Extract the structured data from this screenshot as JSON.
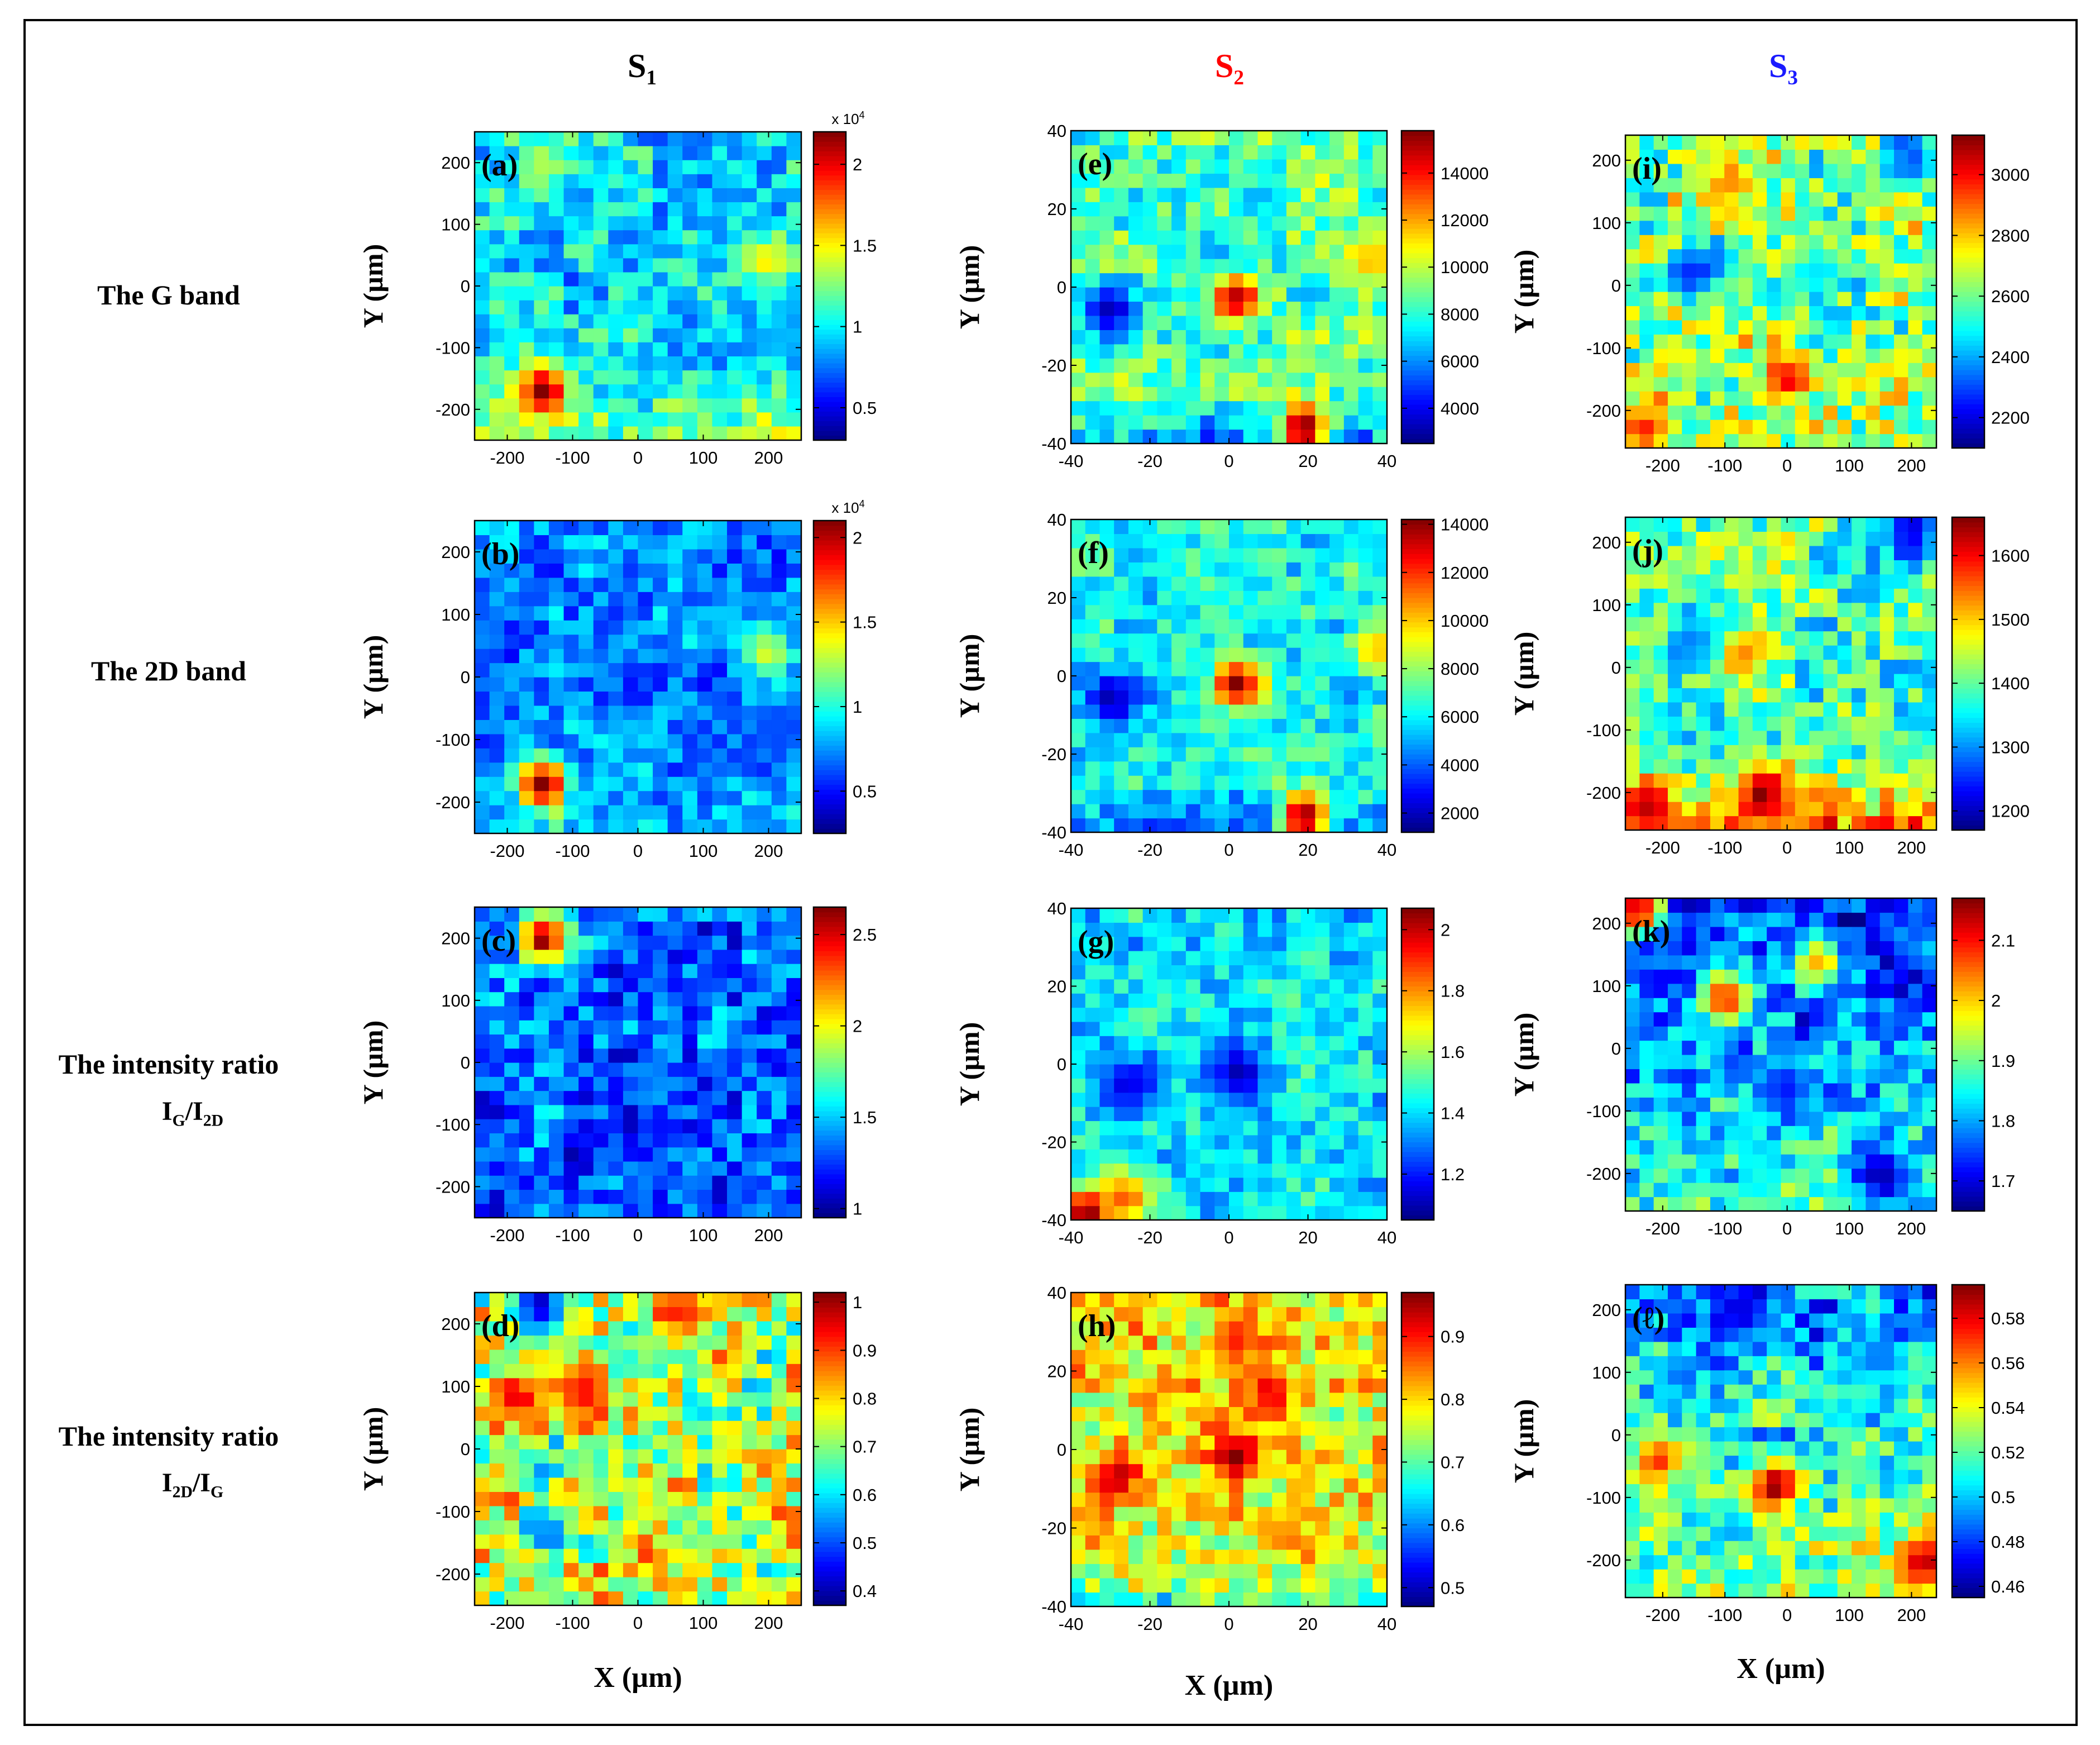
{
  "figure": {
    "columns": [
      {
        "name": "S",
        "sub": "1",
        "color": "#000000"
      },
      {
        "name": "S",
        "sub": "2",
        "color": "#ff0000"
      },
      {
        "name": "S",
        "sub": "3",
        "color": "#1a1aff"
      }
    ],
    "rows": [
      {
        "lines": [
          {
            "text": "The G band",
            "sub": ""
          }
        ]
      },
      {
        "lines": [
          {
            "text": "The 2D band",
            "sub": ""
          }
        ]
      },
      {
        "lines": [
          {
            "text": "The intensity ratio",
            "sub": ""
          },
          {
            "text": "I",
            "sub": "G",
            "text2": "/I",
            "sub2": "2D"
          }
        ]
      },
      {
        "lines": [
          {
            "text": "The intensity ratio",
            "sub": ""
          },
          {
            "text": "I",
            "sub": "2D",
            "text2": "/I",
            "sub2": "G"
          }
        ]
      }
    ],
    "xlabel": "X (µm)",
    "ylabel": "Y (µm)"
  },
  "chart_data": [
    {
      "type": "heatmap",
      "panel": "(a)",
      "sample": "S1",
      "quantity": "The G band",
      "xlabel": "X (µm)",
      "ylabel": "Y (µm)",
      "xlim": [
        -250,
        250
      ],
      "ylim": [
        -250,
        250
      ],
      "xticks": [
        -200,
        -100,
        0,
        100,
        200
      ],
      "yticks": [
        -200,
        -100,
        0,
        100,
        200
      ],
      "colorbar": {
        "ticks": [
          0.5,
          1,
          1.5,
          2
        ],
        "range": [
          0.3,
          2.2
        ],
        "multiplier": "x 10^4",
        "mult_base": "x 10",
        "mult_exp": "4"
      },
      "base": 0.35,
      "noise": 0.12,
      "hotspots": [
        {
          "x": -145,
          "y": -170,
          "v": 1.0
        },
        {
          "x": 200,
          "y": 40,
          "v": 0.65
        },
        {
          "x": -150,
          "y": 200,
          "v": 0.55
        }
      ],
      "lows": [
        {
          "x": 220,
          "y": -85,
          "v": 0.3
        }
      ],
      "gradient": {
        "bottom": 0.15
      }
    },
    {
      "type": "heatmap",
      "panel": "(b)",
      "sample": "S1",
      "quantity": "The 2D band",
      "xlabel": "X (µm)",
      "ylabel": "Y (µm)",
      "xlim": [
        -250,
        250
      ],
      "ylim": [
        -250,
        250
      ],
      "xticks": [
        -200,
        -100,
        0,
        100,
        200
      ],
      "yticks": [
        -200,
        -100,
        0,
        100,
        200
      ],
      "colorbar": {
        "ticks": [
          0.5,
          1,
          1.5,
          2
        ],
        "range": [
          0.25,
          2.1
        ],
        "multiplier": "x 10^4",
        "mult_base": "x 10",
        "mult_exp": "4"
      },
      "base": 0.25,
      "noise": 0.1,
      "hotspots": [
        {
          "x": -145,
          "y": -170,
          "v": 1.0
        },
        {
          "x": 200,
          "y": 40,
          "v": 0.6
        }
      ],
      "lows": [
        {
          "x": 220,
          "y": -85,
          "v": 0.2
        }
      ],
      "gradient": {
        "bottom": 0.08
      }
    },
    {
      "type": "heatmap",
      "panel": "(c)",
      "sample": "S1",
      "quantity": "The intensity ratio IG/I2D",
      "xlabel": "X (µm)",
      "ylabel": "Y (µm)",
      "xlim": [
        -250,
        250
      ],
      "ylim": [
        -250,
        250
      ],
      "xticks": [
        -200,
        -100,
        0,
        100,
        200
      ],
      "yticks": [
        -200,
        -100,
        0,
        100,
        200
      ],
      "colorbar": {
        "ticks": [
          1,
          1.5,
          2,
          2.5
        ],
        "range": [
          0.95,
          2.65
        ],
        "multiplier": ""
      },
      "base": 0.22,
      "noise": 0.12,
      "hotspots": [
        {
          "x": -145,
          "y": 200,
          "v": 1.0
        }
      ],
      "lows": [],
      "gradient": {}
    },
    {
      "type": "heatmap",
      "panel": "(d)",
      "sample": "S1",
      "quantity": "The intensity ratio I2D/IG",
      "xlabel": "X (µm)",
      "ylabel": "Y (µm)",
      "xlim": [
        -250,
        250
      ],
      "ylim": [
        -250,
        250
      ],
      "xticks": [
        -200,
        -100,
        0,
        100,
        200
      ],
      "yticks": [
        -200,
        -100,
        0,
        100,
        200
      ],
      "colorbar": {
        "ticks": [
          0.4,
          0.5,
          0.6,
          0.7,
          0.8,
          0.9,
          1
        ],
        "range": [
          0.37,
          1.02
        ],
        "multiplier": ""
      },
      "base": 0.55,
      "noise": 0.2,
      "hotspots": [
        {
          "x": -145,
          "y": 230,
          "v": 0.95
        },
        {
          "x": -185,
          "y": 85,
          "v": 0.9
        },
        {
          "x": -80,
          "y": 90,
          "v": 0.88
        },
        {
          "x": 65,
          "y": 220,
          "v": 0.85
        }
      ],
      "lows": [
        {
          "x": -150,
          "y": 230,
          "v": 0.05
        }
      ],
      "gradient": {}
    },
    {
      "type": "heatmap",
      "panel": "(e)",
      "sample": "S2",
      "quantity": "The G band",
      "xlabel": "X (µm)",
      "ylabel": "Y (µm)",
      "xlim": [
        -40,
        40
      ],
      "ylim": [
        -40,
        40
      ],
      "xticks": [
        -40,
        -20,
        0,
        20,
        40
      ],
      "yticks": [
        -40,
        -20,
        0,
        20,
        40
      ],
      "colorbar": {
        "ticks": [
          4000,
          6000,
          8000,
          10000,
          12000,
          14000
        ],
        "range": [
          2500,
          15800
        ],
        "multiplier": ""
      },
      "base": 0.45,
      "noise": 0.12,
      "hotspots": [
        {
          "x": 2,
          "y": -3,
          "v": 0.95
        },
        {
          "x": 19,
          "y": -36,
          "v": 1.0
        },
        {
          "x": 37,
          "y": 7,
          "v": 0.7
        }
      ],
      "lows": [
        {
          "x": -30,
          "y": -6,
          "v": 0.05
        }
      ],
      "gradient": {
        "bottom_low": 0.2
      }
    },
    {
      "type": "heatmap",
      "panel": "(f)",
      "sample": "S2",
      "quantity": "The 2D band",
      "xlabel": "X (µm)",
      "ylabel": "Y (µm)",
      "xlim": [
        -40,
        40
      ],
      "ylim": [
        -40,
        40
      ],
      "xticks": [
        -40,
        -20,
        0,
        20,
        40
      ],
      "yticks": [
        -40,
        -20,
        0,
        20,
        40
      ],
      "colorbar": {
        "ticks": [
          2000,
          4000,
          6000,
          8000,
          10000,
          12000,
          14000
        ],
        "range": [
          1200,
          14200
        ],
        "multiplier": ""
      },
      "base": 0.38,
      "noise": 0.1,
      "hotspots": [
        {
          "x": 2,
          "y": -2,
          "v": 1.0
        },
        {
          "x": 19,
          "y": -36,
          "v": 1.0
        },
        {
          "x": 37,
          "y": 7,
          "v": 0.7
        }
      ],
      "lows": [
        {
          "x": -30,
          "y": -6,
          "v": 0.05
        }
      ],
      "gradient": {
        "bottom_low": 0.2
      }
    },
    {
      "type": "heatmap",
      "panel": "(g)",
      "sample": "S2",
      "quantity": "The intensity ratio IG/I2D",
      "xlabel": "X (µm)",
      "ylabel": "Y (µm)",
      "xlim": [
        -40,
        40
      ],
      "ylim": [
        -40,
        40
      ],
      "xticks": [
        -40,
        -20,
        0,
        20,
        40
      ],
      "yticks": [
        -40,
        -20,
        0,
        20,
        40
      ],
      "colorbar": {
        "ticks": [
          1.2,
          1.4,
          1.6,
          1.8,
          2
        ],
        "range": [
          1.05,
          2.07
        ],
        "multiplier": ""
      },
      "base": 0.35,
      "noise": 0.1,
      "hotspots": [
        {
          "x": -36,
          "y": -38,
          "v": 1.0
        },
        {
          "x": -26,
          "y": -34,
          "v": 0.8
        }
      ],
      "lows": [
        {
          "x": 2,
          "y": -2,
          "v": 0.05
        },
        {
          "x": -26,
          "y": -6,
          "v": 0.1
        }
      ],
      "gradient": {}
    },
    {
      "type": "heatmap",
      "panel": "(h)",
      "sample": "S2",
      "quantity": "The intensity ratio I2D/IG",
      "xlabel": "X (µm)",
      "ylabel": "Y (µm)",
      "xlim": [
        -40,
        40
      ],
      "ylim": [
        -40,
        40
      ],
      "xticks": [
        -40,
        -20,
        0,
        20,
        40
      ],
      "yticks": [
        -40,
        -20,
        0,
        20,
        40
      ],
      "colorbar": {
        "ticks": [
          0.5,
          0.6,
          0.7,
          0.8,
          0.9
        ],
        "range": [
          0.47,
          0.97
        ],
        "multiplier": ""
      },
      "base": 0.62,
      "noise": 0.14,
      "hotspots": [
        {
          "x": 2,
          "y": -2,
          "v": 1.0
        },
        {
          "x": -28,
          "y": -7,
          "v": 0.95
        },
        {
          "x": 10,
          "y": 15,
          "v": 0.9
        },
        {
          "x": 2,
          "y": 28,
          "v": 0.85
        }
      ],
      "lows": [],
      "gradient": {
        "bottom_low": 0.25
      }
    },
    {
      "type": "heatmap",
      "panel": "(i)",
      "sample": "S3",
      "quantity": "The G band",
      "xlabel": "X (µm)",
      "ylabel": "Y (µm)",
      "xlim": [
        -260,
        240
      ],
      "ylim": [
        -260,
        240
      ],
      "xticks": [
        -200,
        -100,
        0,
        100,
        200
      ],
      "yticks": [
        -200,
        -100,
        0,
        100,
        200
      ],
      "colorbar": {
        "ticks": [
          2200,
          2400,
          2600,
          2800,
          3000
        ],
        "range": [
          2100,
          3130
        ],
        "multiplier": ""
      },
      "base": 0.5,
      "noise": 0.18,
      "hotspots": [
        {
          "x": 0,
          "y": -150,
          "v": 0.9
        },
        {
          "x": -230,
          "y": -230,
          "v": 0.85
        },
        {
          "x": -100,
          "y": 160,
          "v": 0.75
        }
      ],
      "lows": [
        {
          "x": -150,
          "y": 20,
          "v": 0.15
        },
        {
          "x": 200,
          "y": 200,
          "v": 0.2
        },
        {
          "x": 50,
          "y": 30,
          "v": 0.35
        }
      ],
      "gradient": {}
    },
    {
      "type": "heatmap",
      "panel": "(j)",
      "sample": "S3",
      "quantity": "The 2D band",
      "xlabel": "X (µm)",
      "ylabel": "Y (µm)",
      "xlim": [
        -260,
        240
      ],
      "ylim": [
        -260,
        240
      ],
      "xticks": [
        -200,
        -100,
        0,
        100,
        200
      ],
      "yticks": [
        -200,
        -100,
        0,
        100,
        200
      ],
      "colorbar": {
        "ticks": [
          1200,
          1300,
          1400,
          1500,
          1600
        ],
        "range": [
          1170,
          1660
        ],
        "multiplier": ""
      },
      "base": 0.45,
      "noise": 0.15,
      "hotspots": [
        {
          "x": -40,
          "y": -200,
          "v": 1.0
        },
        {
          "x": -220,
          "y": -220,
          "v": 0.95
        },
        {
          "x": -80,
          "y": 20,
          "v": 0.8
        }
      ],
      "lows": [
        {
          "x": 200,
          "y": 220,
          "v": 0.1
        },
        {
          "x": -150,
          "y": 40,
          "v": 0.25
        }
      ],
      "gradient": {
        "bottom": 0.3
      }
    },
    {
      "type": "heatmap",
      "panel": "(k)",
      "sample": "S3",
      "quantity": "The intensity ratio IG/I2D",
      "xlabel": "X (µm)",
      "ylabel": "Y (µm)",
      "xlim": [
        -260,
        240
      ],
      "ylim": [
        -260,
        240
      ],
      "xticks": [
        -200,
        -100,
        0,
        100,
        200
      ],
      "yticks": [
        -200,
        -100,
        0,
        100,
        200
      ],
      "colorbar": {
        "ticks": [
          1.7,
          1.8,
          1.9,
          2,
          2.1
        ],
        "range": [
          1.65,
          2.17
        ],
        "multiplier": ""
      },
      "base": 0.4,
      "noise": 0.14,
      "hotspots": [
        {
          "x": -240,
          "y": 220,
          "v": 0.95
        },
        {
          "x": -100,
          "y": 80,
          "v": 0.85
        },
        {
          "x": 50,
          "y": 140,
          "v": 0.7
        }
      ],
      "lows": [
        {
          "x": 150,
          "y": -200,
          "v": 0.05
        },
        {
          "x": 0,
          "y": -60,
          "v": 0.15
        }
      ],
      "gradient": {
        "top": 0.25
      }
    },
    {
      "type": "heatmap",
      "panel": "(ℓ)",
      "sample": "S3",
      "quantity": "The intensity ratio I2D/IG",
      "xlabel": "X (µm)",
      "ylabel": "Y (µm)",
      "xlim": [
        -260,
        240
      ],
      "ylim": [
        -260,
        240
      ],
      "xticks": [
        -200,
        -100,
        0,
        100,
        200
      ],
      "yticks": [
        -200,
        -100,
        0,
        100,
        200
      ],
      "colorbar": {
        "ticks": [
          0.46,
          0.48,
          0.5,
          0.52,
          0.54,
          0.56,
          0.58
        ],
        "range": [
          0.455,
          0.595
        ],
        "multiplier": ""
      },
      "base": 0.55,
      "noise": 0.15,
      "hotspots": [
        {
          "x": -20,
          "y": -80,
          "v": 1.0
        },
        {
          "x": 220,
          "y": -200,
          "v": 0.95
        },
        {
          "x": -210,
          "y": -40,
          "v": 0.85
        }
      ],
      "lows": [
        {
          "x": -80,
          "y": 200,
          "v": 0.1
        },
        {
          "x": 150,
          "y": 130,
          "v": 0.25
        }
      ],
      "gradient": {
        "top": 0.3
      }
    }
  ]
}
